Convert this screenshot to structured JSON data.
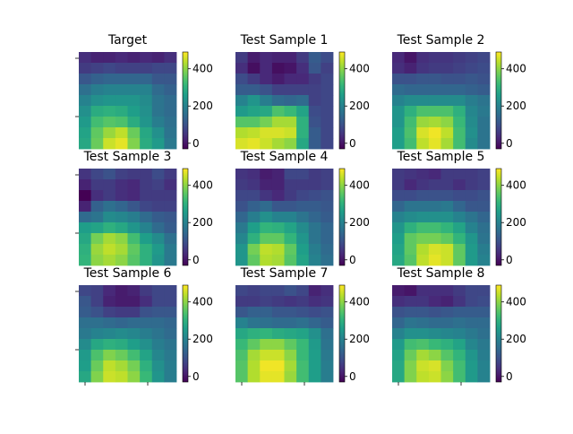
{
  "chart_data": {
    "type": "heatmap",
    "layout": "3x3 grid of heatmap panels, each with its own colorbar",
    "colormap": "viridis",
    "vmin": -30,
    "vmax": 490,
    "colorbar_ticks": [
      0,
      200,
      400
    ],
    "panels": [
      {
        "title": "Target",
        "values": [
          [
            40,
            20,
            20,
            30,
            20,
            30,
            20,
            40
          ],
          [
            60,
            70,
            80,
            70,
            70,
            70,
            80,
            80
          ],
          [
            110,
            130,
            140,
            140,
            140,
            140,
            110,
            110
          ],
          [
            160,
            190,
            200,
            200,
            200,
            200,
            150,
            130
          ],
          [
            200,
            230,
            240,
            240,
            240,
            220,
            170,
            150
          ],
          [
            230,
            290,
            300,
            290,
            260,
            230,
            170,
            150
          ],
          [
            250,
            330,
            350,
            340,
            290,
            240,
            190,
            160
          ],
          [
            270,
            360,
            410,
            440,
            370,
            280,
            230,
            170
          ],
          [
            280,
            370,
            450,
            470,
            390,
            290,
            250,
            180
          ]
        ]
      },
      {
        "title": "Test Sample 1",
        "values": [
          [
            60,
            10,
            30,
            20,
            20,
            60,
            120,
            90
          ],
          [
            40,
            -10,
            30,
            -10,
            0,
            40,
            110,
            70
          ],
          [
            90,
            60,
            30,
            10,
            30,
            30,
            60,
            80
          ],
          [
            120,
            120,
            100,
            70,
            70,
            70,
            70,
            80
          ],
          [
            200,
            240,
            190,
            150,
            140,
            150,
            70,
            80
          ],
          [
            250,
            270,
            280,
            340,
            320,
            270,
            90,
            80
          ],
          [
            350,
            350,
            380,
            420,
            420,
            300,
            100,
            80
          ],
          [
            430,
            440,
            460,
            460,
            450,
            300,
            120,
            80
          ],
          [
            460,
            470,
            450,
            420,
            400,
            280,
            120,
            80
          ]
        ]
      },
      {
        "title": "Test Sample 2",
        "values": [
          [
            30,
            0,
            40,
            50,
            50,
            60,
            70,
            80
          ],
          [
            40,
            20,
            50,
            60,
            60,
            70,
            80,
            90
          ],
          [
            100,
            100,
            110,
            110,
            100,
            100,
            110,
            100
          ],
          [
            150,
            140,
            140,
            140,
            140,
            140,
            130,
            120
          ],
          [
            200,
            220,
            220,
            220,
            220,
            220,
            190,
            170
          ],
          [
            240,
            300,
            340,
            340,
            340,
            300,
            210,
            180
          ],
          [
            240,
            330,
            410,
            420,
            400,
            320,
            220,
            170
          ],
          [
            260,
            340,
            460,
            480,
            440,
            330,
            230,
            170
          ],
          [
            260,
            330,
            440,
            470,
            420,
            330,
            220,
            170
          ]
        ]
      },
      {
        "title": "Test Sample 3",
        "values": [
          [
            50,
            80,
            100,
            70,
            60,
            60,
            90,
            60
          ],
          [
            20,
            60,
            60,
            40,
            30,
            60,
            70,
            40
          ],
          [
            -30,
            40,
            60,
            40,
            30,
            60,
            60,
            60
          ],
          [
            20,
            130,
            160,
            140,
            110,
            80,
            70,
            70
          ],
          [
            150,
            170,
            220,
            210,
            190,
            150,
            120,
            110
          ],
          [
            260,
            270,
            300,
            280,
            240,
            200,
            150,
            120
          ],
          [
            280,
            380,
            420,
            400,
            330,
            260,
            220,
            160
          ],
          [
            300,
            410,
            440,
            420,
            360,
            300,
            250,
            180
          ],
          [
            310,
            400,
            420,
            400,
            350,
            300,
            240,
            180
          ]
        ]
      },
      {
        "title": "Test Sample 4",
        "values": [
          [
            50,
            40,
            10,
            20,
            80,
            80,
            60,
            70
          ],
          [
            60,
            50,
            20,
            20,
            60,
            60,
            60,
            70
          ],
          [
            80,
            80,
            50,
            30,
            60,
            80,
            90,
            100
          ],
          [
            100,
            130,
            150,
            110,
            110,
            120,
            120,
            110
          ],
          [
            140,
            190,
            230,
            200,
            200,
            170,
            140,
            120
          ],
          [
            180,
            260,
            310,
            300,
            270,
            220,
            170,
            140
          ],
          [
            210,
            300,
            360,
            360,
            310,
            240,
            170,
            140
          ],
          [
            240,
            380,
            440,
            430,
            360,
            260,
            190,
            150
          ],
          [
            240,
            360,
            430,
            420,
            350,
            270,
            200,
            160
          ]
        ]
      },
      {
        "title": "Test Sample 5",
        "values": [
          [
            60,
            50,
            40,
            30,
            60,
            60,
            60,
            70
          ],
          [
            60,
            30,
            50,
            60,
            60,
            40,
            60,
            70
          ],
          [
            90,
            90,
            100,
            100,
            100,
            90,
            90,
            100
          ],
          [
            140,
            170,
            170,
            170,
            180,
            140,
            110,
            110
          ],
          [
            200,
            220,
            230,
            230,
            230,
            200,
            170,
            140
          ],
          [
            240,
            300,
            330,
            330,
            310,
            270,
            200,
            160
          ],
          [
            260,
            360,
            380,
            380,
            360,
            310,
            240,
            170
          ],
          [
            270,
            360,
            430,
            460,
            450,
            360,
            250,
            190
          ],
          [
            280,
            350,
            440,
            470,
            450,
            360,
            250,
            200
          ]
        ]
      },
      {
        "title": "Test Sample 6",
        "values": [
          [
            80,
            70,
            30,
            10,
            20,
            60,
            80,
            80
          ],
          [
            110,
            70,
            20,
            10,
            10,
            40,
            80,
            80
          ],
          [
            120,
            100,
            70,
            60,
            60,
            100,
            110,
            110
          ],
          [
            160,
            160,
            150,
            140,
            150,
            150,
            150,
            140
          ],
          [
            180,
            200,
            210,
            220,
            210,
            190,
            170,
            150
          ],
          [
            220,
            280,
            300,
            290,
            260,
            230,
            190,
            170
          ],
          [
            250,
            340,
            390,
            370,
            330,
            270,
            210,
            180
          ],
          [
            260,
            370,
            440,
            420,
            380,
            300,
            230,
            190
          ],
          [
            280,
            390,
            450,
            440,
            400,
            320,
            240,
            190
          ]
        ]
      },
      {
        "title": "Test Sample 7",
        "values": [
          [
            80,
            70,
            80,
            80,
            100,
            80,
            20,
            40
          ],
          [
            60,
            60,
            70,
            60,
            50,
            60,
            40,
            50
          ],
          [
            110,
            130,
            130,
            110,
            110,
            100,
            90,
            100
          ],
          [
            200,
            170,
            160,
            150,
            150,
            160,
            140,
            120
          ],
          [
            280,
            300,
            310,
            290,
            280,
            270,
            230,
            160
          ],
          [
            320,
            360,
            400,
            400,
            360,
            320,
            250,
            170
          ],
          [
            340,
            420,
            450,
            450,
            400,
            320,
            260,
            180
          ],
          [
            350,
            430,
            480,
            480,
            420,
            330,
            260,
            190
          ],
          [
            350,
            430,
            470,
            470,
            410,
            330,
            260,
            190
          ]
        ]
      },
      {
        "title": "Test Sample 8",
        "values": [
          [
            10,
            0,
            40,
            40,
            40,
            60,
            80,
            80
          ],
          [
            40,
            50,
            50,
            30,
            20,
            50,
            80,
            90
          ],
          [
            100,
            110,
            110,
            100,
            110,
            120,
            120,
            120
          ],
          [
            140,
            170,
            160,
            150,
            150,
            160,
            150,
            150
          ],
          [
            200,
            230,
            230,
            220,
            210,
            200,
            180,
            160
          ],
          [
            250,
            330,
            340,
            320,
            300,
            270,
            210,
            180
          ],
          [
            270,
            370,
            420,
            400,
            350,
            310,
            240,
            190
          ],
          [
            280,
            390,
            450,
            460,
            390,
            330,
            250,
            200
          ],
          [
            280,
            390,
            440,
            450,
            400,
            330,
            250,
            200
          ]
        ]
      }
    ]
  }
}
